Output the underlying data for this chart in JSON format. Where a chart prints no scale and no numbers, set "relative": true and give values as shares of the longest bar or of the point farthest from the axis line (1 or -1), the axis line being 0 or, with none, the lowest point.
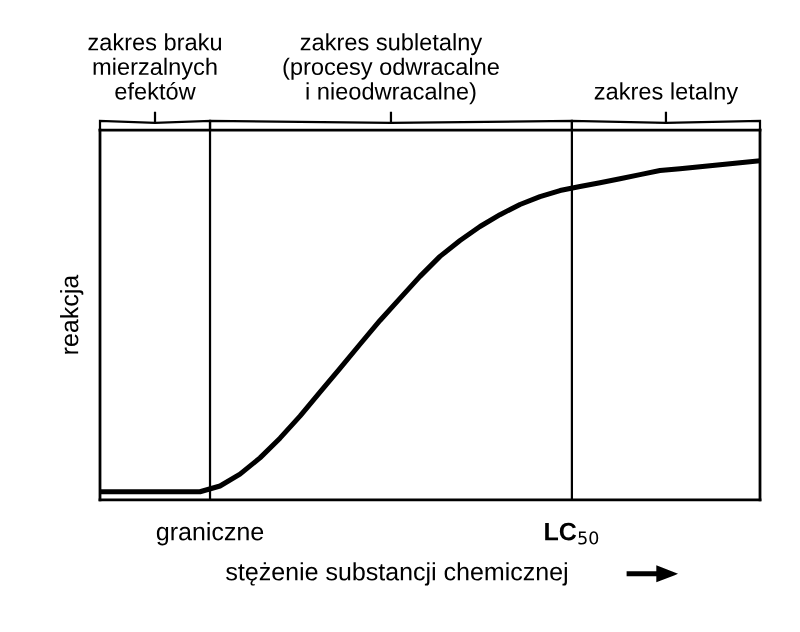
{
  "chart_data": {
    "type": "line",
    "relative": true,
    "ylabel": "reakcja",
    "xlabel": "stężenie substancji chemicznej",
    "categories": [
      null,
      null,
      null,
      null,
      null,
      null,
      null,
      null,
      null,
      null,
      null,
      null,
      null,
      null,
      null,
      null,
      null,
      null,
      null,
      null,
      null,
      null,
      null,
      null,
      null,
      null,
      null,
      null,
      null,
      null,
      null,
      null,
      null,
      null
    ],
    "series": [
      {
        "color": "#000000",
        "values": [
          0.024,
          0.024,
          0.024,
          0.024,
          0.024,
          0.024,
          0.041,
          0.076,
          0.124,
          0.182,
          0.247,
          0.318,
          0.388,
          0.459,
          0.529,
          0.594,
          0.659,
          0.718,
          0.765,
          0.806,
          0.841,
          0.871,
          0.894,
          0.912,
          0.924,
          0.935,
          0.947,
          0.959,
          0.971,
          0.976,
          0.982,
          0.988,
          0.994,
          1
        ]
      }
    ],
    "annotations": [
      "zakres braku\nmierzalnych\nefektów",
      "zakres subletalny\n(procesy odwracalne\ni nieodwracalne)",
      "zakres letalny",
      "graniczne",
      "LC$_{50}$"
    ],
    "tick_labels": false,
    "legend": false,
    "marker": "none",
    "line_style": "solid"
  }
}
